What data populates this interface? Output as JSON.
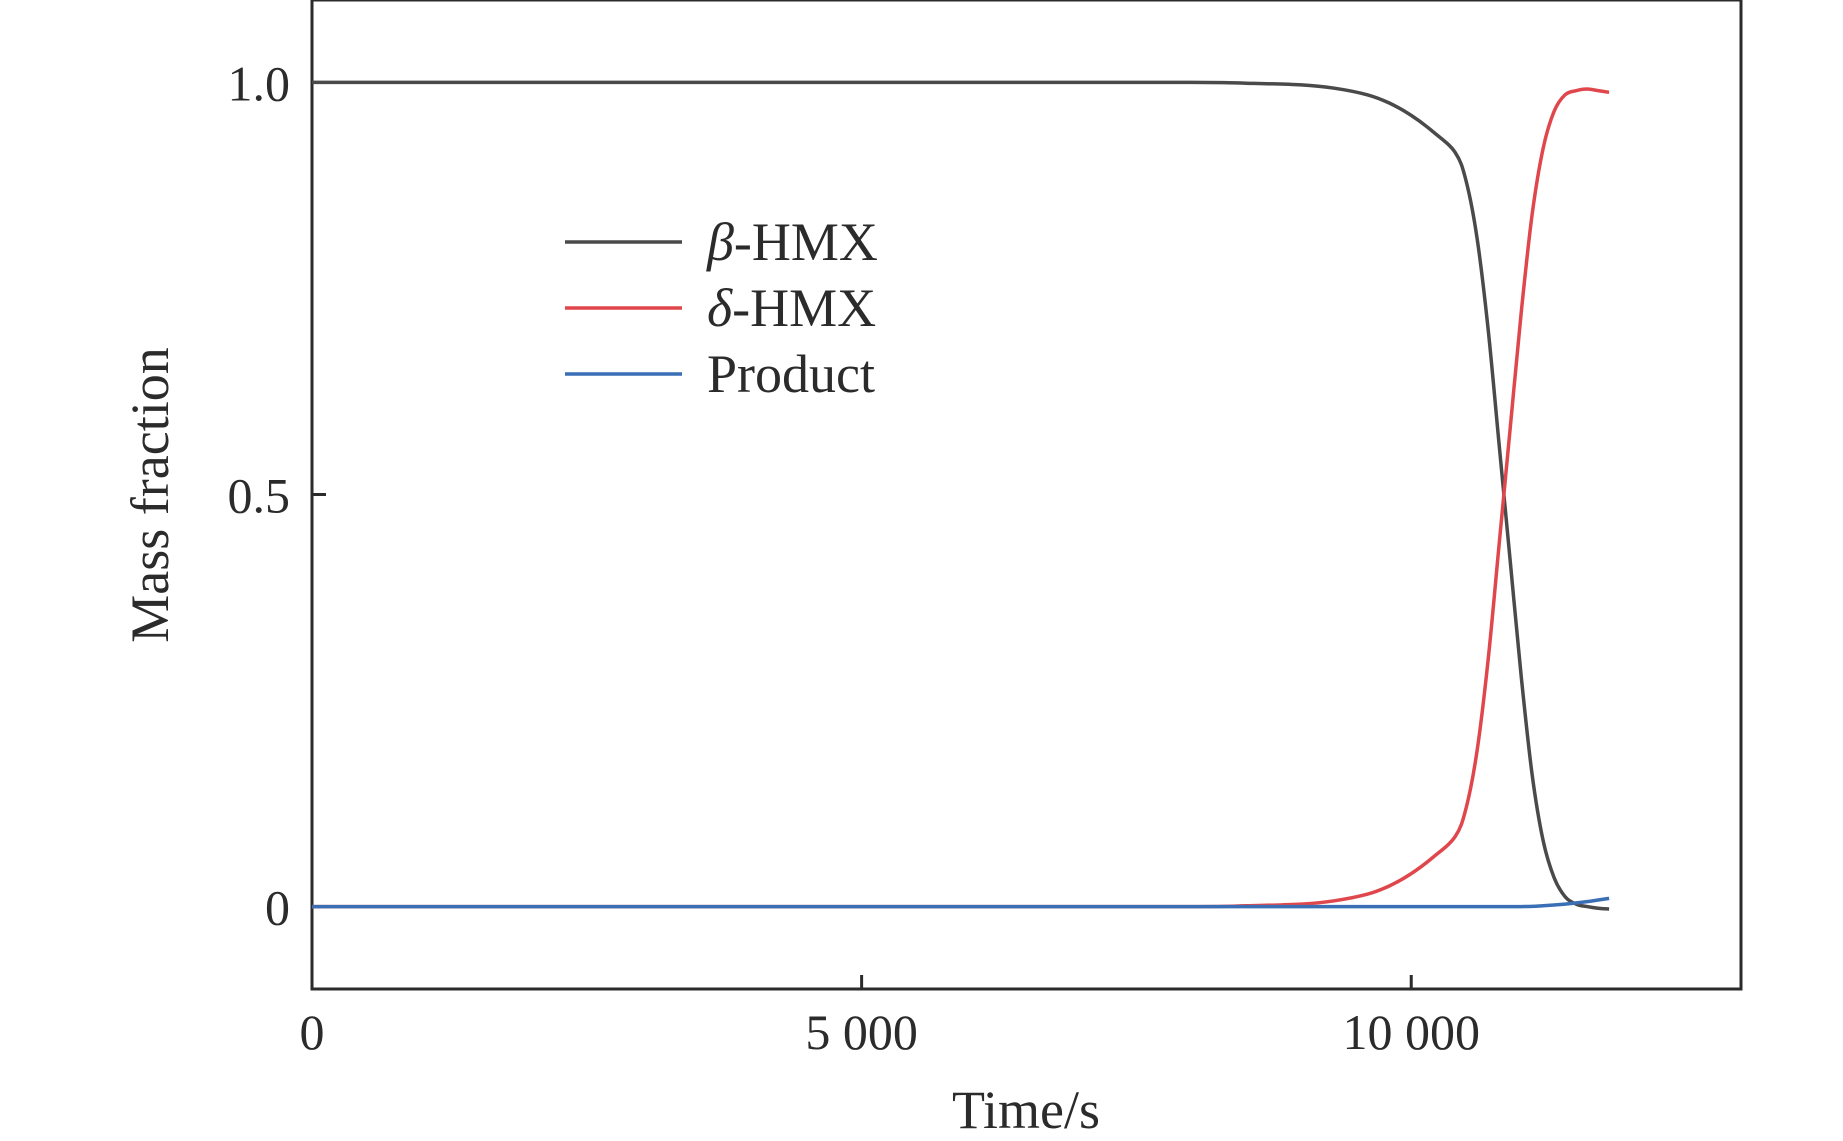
{
  "chart_data": {
    "type": "line",
    "title": "",
    "xlabel": "Time/s",
    "ylabel": "Mass fraction",
    "xlim": [
      0,
      13000
    ],
    "ylim": [
      -0.1,
      1.1
    ],
    "xticks": [
      0,
      5000,
      10000
    ],
    "xtick_labels": [
      "0",
      "5 000",
      "10 000"
    ],
    "yticks": [
      0,
      0.5,
      1.0
    ],
    "ytick_labels": [
      "0",
      "0.5",
      "1.0"
    ],
    "grid": false,
    "legend_position": "upper-left",
    "series": [
      {
        "name": "β-HMX",
        "legend_greek": "β",
        "legend_rest": "-HMX",
        "color": "#4a4a4a",
        "x": [
          0,
          2000,
          4000,
          6000,
          8000,
          8500,
          9000,
          9300,
          9600,
          9800,
          10000,
          10200,
          10400,
          10500,
          10600,
          10700,
          10800,
          10900,
          11000,
          11100,
          11200,
          11300,
          11400,
          11500,
          11600,
          11700,
          11800
        ],
        "y": [
          1.0,
          1.0,
          1.0,
          1.0,
          1.0,
          0.999,
          0.997,
          0.993,
          0.985,
          0.975,
          0.96,
          0.94,
          0.915,
          0.88,
          0.81,
          0.7,
          0.56,
          0.42,
          0.28,
          0.16,
          0.08,
          0.035,
          0.012,
          0.003,
          0.0,
          -0.002,
          -0.003
        ]
      },
      {
        "name": "δ-HMX",
        "legend_greek": "δ",
        "legend_rest": "-HMX",
        "color": "#e0474c",
        "x": [
          0,
          2000,
          4000,
          6000,
          8000,
          8500,
          9000,
          9300,
          9600,
          9800,
          10000,
          10200,
          10400,
          10500,
          10600,
          10700,
          10800,
          10900,
          11000,
          11100,
          11200,
          11300,
          11400,
          11500,
          11600,
          11700,
          11800
        ],
        "y": [
          0.0,
          0.0,
          0.0,
          0.0,
          0.0,
          0.001,
          0.003,
          0.007,
          0.015,
          0.025,
          0.04,
          0.06,
          0.085,
          0.12,
          0.19,
          0.3,
          0.44,
          0.58,
          0.72,
          0.84,
          0.92,
          0.965,
          0.985,
          0.99,
          0.992,
          0.99,
          0.988
        ]
      },
      {
        "name": "Product",
        "legend_greek": "",
        "legend_rest": "Product",
        "color": "#3a6fb6",
        "x": [
          0,
          2000,
          4000,
          6000,
          8000,
          10000,
          10500,
          11000,
          11200,
          11400,
          11600,
          11800
        ],
        "y": [
          0.0,
          0.0,
          0.0,
          0.0,
          0.0,
          0.0,
          0.0,
          0.0,
          0.001,
          0.003,
          0.006,
          0.01
        ]
      }
    ]
  }
}
